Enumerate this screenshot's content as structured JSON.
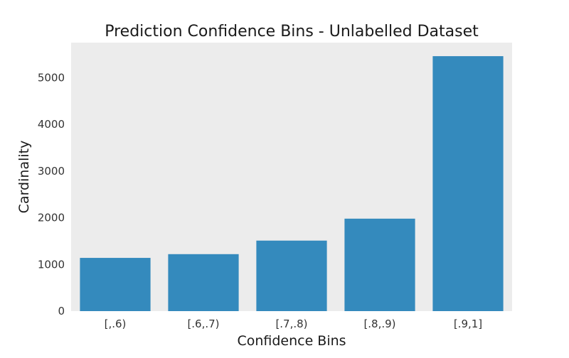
{
  "chart_data": {
    "type": "bar",
    "title": "Prediction Confidence Bins - Unlabelled Dataset",
    "xlabel": "Confidence Bins",
    "ylabel": "Cardinality",
    "categories": [
      "[,.6)",
      "[.6,.7)",
      "[.7,.8)",
      "[.8,.9)",
      "[.9,1]"
    ],
    "values": [
      1140,
      1220,
      1510,
      1980,
      5460
    ],
    "ylim": [
      0,
      5750
    ],
    "yticks": [
      0,
      1000,
      2000,
      3000,
      4000,
      5000
    ],
    "grid": false,
    "legend": "none",
    "bar_color": "#348abd",
    "plot_background": "#ececec"
  }
}
